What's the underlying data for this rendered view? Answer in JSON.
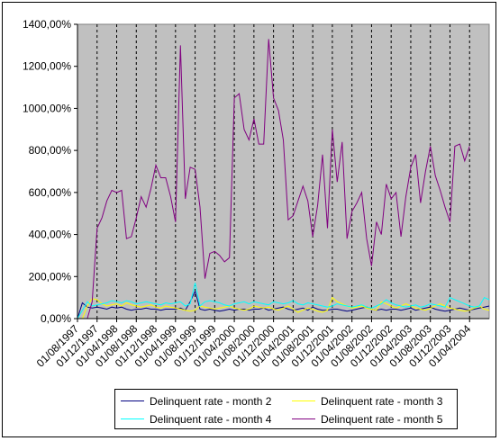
{
  "chart_data": {
    "type": "line",
    "title": "",
    "xlabel": "",
    "ylabel": "",
    "ylim": [
      0,
      1400
    ],
    "y_ticks": [
      "0,00%",
      "200,00%",
      "400,00%",
      "600,00%",
      "800,00%",
      "1000,00%",
      "1200,00%",
      "1400,00%"
    ],
    "x_ticks": [
      "01/08/1997",
      "01/12/1997",
      "01/04/1998",
      "01/08/1998",
      "01/12/1998",
      "01/04/1999",
      "01/08/1999",
      "01/12/1999",
      "01/04/2000",
      "01/08/2000",
      "01/12/2000",
      "01/04/2001",
      "01/08/2001",
      "01/12/2001",
      "01/04/2002",
      "01/08/2002",
      "01/12/2002",
      "01/04/2003",
      "01/08/2003",
      "01/12/2003",
      "01/04/2004"
    ],
    "x_start": "01/08/1997",
    "x_step_months": 1,
    "grid": "vertical dashed lines",
    "legend": "bottom",
    "series": [
      {
        "name": "Delinquent rate - month 2",
        "color": "#000080",
        "values": [
          0,
          75,
          55,
          50,
          55,
          50,
          45,
          55,
          50,
          55,
          45,
          40,
          45,
          45,
          50,
          45,
          45,
          40,
          45,
          45,
          45,
          50,
          40,
          80,
          130,
          45,
          40,
          45,
          40,
          35,
          40,
          45,
          40,
          45,
          45,
          40,
          45,
          45,
          50,
          40,
          45,
          50,
          55,
          45,
          40,
          45,
          50,
          40,
          55,
          45,
          40,
          40,
          45,
          45,
          40,
          35,
          40,
          45,
          50,
          55,
          45,
          40,
          45,
          40,
          45,
          45,
          40,
          45,
          50,
          40,
          45,
          50,
          55,
          45,
          40,
          35,
          40,
          45,
          50,
          45,
          40,
          45,
          50,
          55,
          60
        ]
      },
      {
        "name": "Delinquent rate - month 3",
        "color": "#FFFF00",
        "values": [
          0,
          0,
          60,
          95,
          90,
          70,
          60,
          65,
          70,
          60,
          75,
          65,
          60,
          55,
          60,
          65,
          55,
          50,
          60,
          55,
          50,
          45,
          40,
          35,
          40,
          60,
          55,
          50,
          45,
          50,
          55,
          60,
          50,
          45,
          40,
          45,
          60,
          55,
          50,
          55,
          45,
          40,
          50,
          60,
          45,
          30,
          40,
          50,
          45,
          35,
          30,
          40,
          100,
          80,
          70,
          60,
          50,
          55,
          60,
          50,
          45,
          40,
          80,
          70,
          60,
          50,
          60,
          70,
          60,
          50,
          45,
          40,
          50,
          60,
          70,
          60,
          50,
          45,
          40,
          35,
          40,
          50,
          60,
          45,
          40
        ]
      },
      {
        "name": "Delinquent rate - month 4",
        "color": "#00FFFF",
        "values": [
          0,
          40,
          80,
          60,
          65,
          70,
          75,
          85,
          80,
          75,
          85,
          80,
          70,
          75,
          80,
          75,
          70,
          65,
          75,
          70,
          75,
          80,
          60,
          70,
          170,
          60,
          80,
          85,
          80,
          75,
          65,
          60,
          70,
          75,
          80,
          70,
          80,
          75,
          70,
          65,
          80,
          75,
          70,
          75,
          85,
          70,
          65,
          75,
          70,
          65,
          60,
          55,
          60,
          70,
          65,
          60,
          55,
          60,
          65,
          55,
          50,
          60,
          70,
          90,
          75,
          65,
          60,
          55,
          60,
          65,
          55,
          60,
          70,
          65,
          60,
          55,
          100,
          90,
          80,
          70,
          60,
          55,
          60,
          100,
          90
        ]
      },
      {
        "name": "Delinquent rate - month 5",
        "color": "#800080",
        "values": [
          0,
          0,
          0,
          80,
          430,
          480,
          560,
          610,
          600,
          610,
          380,
          390,
          480,
          580,
          530,
          620,
          730,
          670,
          670,
          580,
          460,
          1300,
          570,
          720,
          710,
          530,
          190,
          310,
          320,
          300,
          270,
          290,
          1050,
          1070,
          900,
          850,
          950,
          830,
          830,
          1330,
          1050,
          990,
          850,
          470,
          490,
          560,
          630,
          560,
          390,
          540,
          780,
          430,
          900,
          650,
          840,
          380,
          510,
          550,
          600,
          380,
          250,
          460,
          400,
          640,
          570,
          600,
          390,
          580,
          720,
          780,
          550,
          700,
          820,
          680,
          610,
          530,
          460,
          820,
          830,
          750,
          820
        ]
      }
    ]
  },
  "legend": {
    "entries": [
      {
        "label": "Delinquent rate - month 2",
        "color": "#000080"
      },
      {
        "label": "Delinquent rate - month 3",
        "color": "#FFFF00"
      },
      {
        "label": "Delinquent rate - month 4",
        "color": "#00FFFF"
      },
      {
        "label": "Delinquent rate - month 5",
        "color": "#800080"
      }
    ]
  },
  "colors": {
    "plot_background": "#C0C0C0",
    "grid": "#000000",
    "page": "#FFFFFF"
  }
}
